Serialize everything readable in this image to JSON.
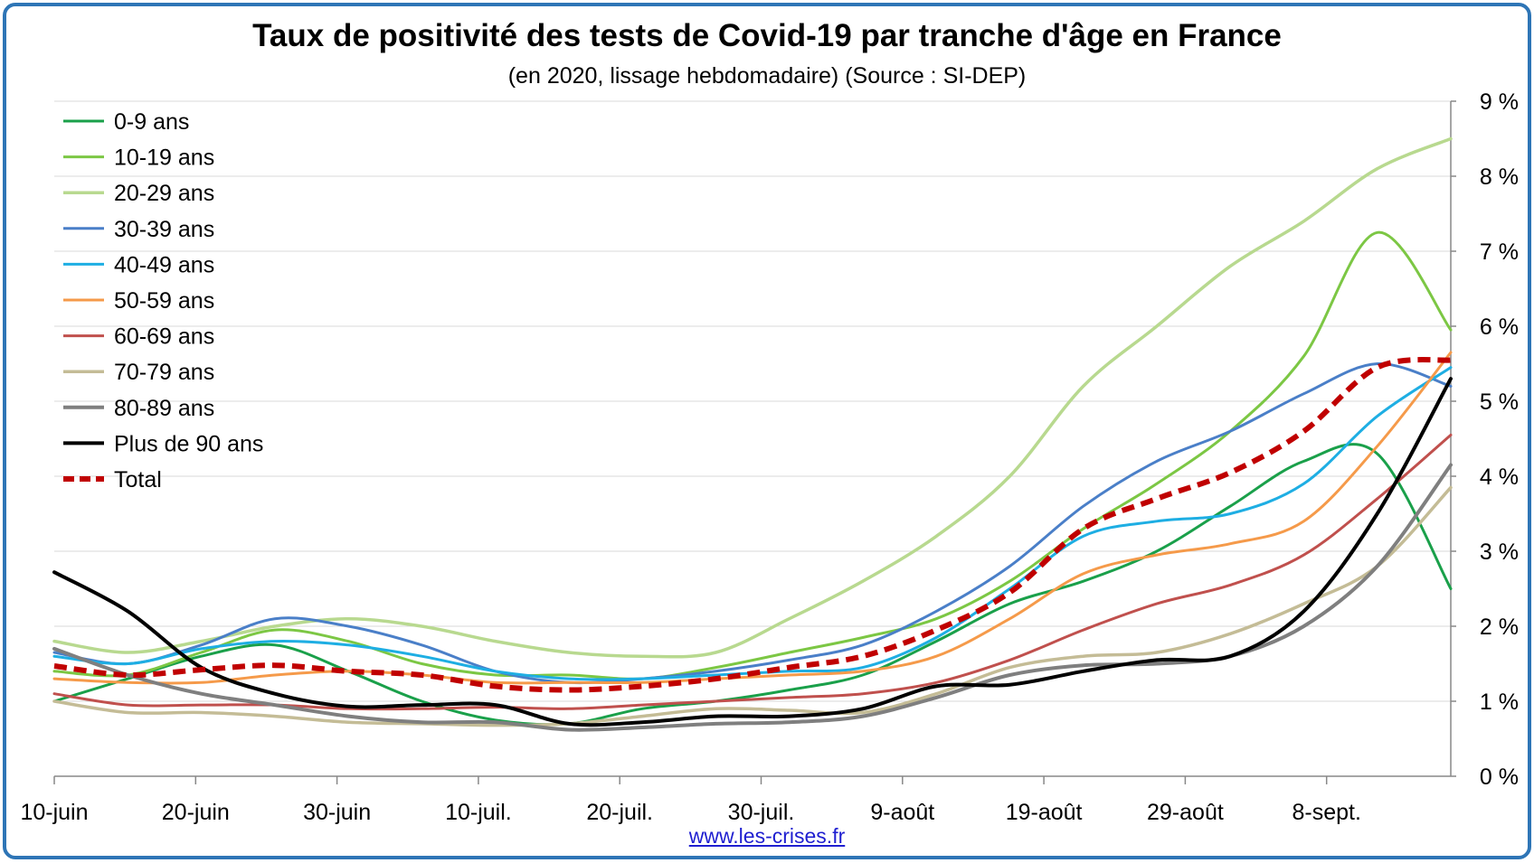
{
  "title": "Taux de positivité des tests de Covid-19 par tranche d'âge en France",
  "subtitle": "(en 2020, lissage hebdomadaire) (Source : SI-DEP)",
  "source_link": "www.les-crises.fr",
  "chart_data": {
    "type": "line",
    "x": [
      "10-juin",
      "15-juin",
      "20-juin",
      "25-juin",
      "30-juin",
      "5-juil.",
      "10-juil.",
      "15-juil.",
      "20-juil.",
      "25-juil.",
      "30-juil.",
      "4-août",
      "9-août",
      "14-août",
      "19-août",
      "24-août",
      "29-août",
      "3-sept.",
      "8-sept.",
      "13-sept."
    ],
    "xticks": [
      "10-juin",
      "20-juin",
      "30-juin",
      "10-juil.",
      "20-juil.",
      "30-juil.",
      "9-août",
      "19-août",
      "29-août",
      "8-sept."
    ],
    "yticks": [
      "0 %",
      "1 %",
      "2 %",
      "3 %",
      "4 %",
      "5 %",
      "6 %",
      "7 %",
      "8 %",
      "9 %"
    ],
    "ylim": [
      0,
      9
    ],
    "grid": true,
    "legend_position": "top-left",
    "series": [
      {
        "name": "0-9 ans",
        "color": "#1aa04a",
        "width": 3,
        "dash": "",
        "values": [
          1.0,
          1.3,
          1.6,
          1.75,
          1.4,
          1.0,
          0.75,
          0.7,
          0.9,
          1.0,
          1.15,
          1.35,
          1.8,
          2.3,
          2.6,
          3.0,
          3.6,
          4.2,
          4.3,
          2.5
        ]
      },
      {
        "name": "10-19 ans",
        "color": "#7cc744",
        "width": 3,
        "dash": "",
        "values": [
          1.4,
          1.35,
          1.65,
          1.95,
          1.8,
          1.5,
          1.35,
          1.35,
          1.3,
          1.45,
          1.65,
          1.85,
          2.1,
          2.6,
          3.3,
          3.9,
          4.6,
          5.6,
          7.25,
          5.95
        ]
      },
      {
        "name": "20-29 ans",
        "color": "#b8d98f",
        "width": 3.5,
        "dash": "",
        "values": [
          1.8,
          1.65,
          1.8,
          2.0,
          2.1,
          2.0,
          1.8,
          1.65,
          1.6,
          1.65,
          2.1,
          2.6,
          3.2,
          4.0,
          5.2,
          6.0,
          6.8,
          7.4,
          8.1,
          8.5
        ]
      },
      {
        "name": "30-39 ans",
        "color": "#4a7fc8",
        "width": 3,
        "dash": "",
        "values": [
          1.65,
          1.5,
          1.75,
          2.1,
          2.0,
          1.75,
          1.4,
          1.25,
          1.3,
          1.4,
          1.55,
          1.75,
          2.2,
          2.8,
          3.6,
          4.2,
          4.6,
          5.1,
          5.5,
          5.2
        ]
      },
      {
        "name": "40-49 ans",
        "color": "#1eaee3",
        "width": 3,
        "dash": "",
        "values": [
          1.6,
          1.5,
          1.7,
          1.8,
          1.75,
          1.6,
          1.4,
          1.3,
          1.3,
          1.35,
          1.4,
          1.45,
          1.85,
          2.5,
          3.2,
          3.4,
          3.5,
          3.9,
          4.8,
          5.45
        ]
      },
      {
        "name": "50-59 ans",
        "color": "#f59a4a",
        "width": 3,
        "dash": "",
        "values": [
          1.3,
          1.25,
          1.25,
          1.35,
          1.4,
          1.35,
          1.25,
          1.25,
          1.25,
          1.3,
          1.35,
          1.4,
          1.6,
          2.1,
          2.7,
          2.95,
          3.1,
          3.4,
          4.4,
          5.65
        ]
      },
      {
        "name": "60-69 ans",
        "color": "#c0504d",
        "width": 3,
        "dash": "",
        "values": [
          1.1,
          0.95,
          0.95,
          0.95,
          0.9,
          0.9,
          0.92,
          0.9,
          0.95,
          1.0,
          1.05,
          1.1,
          1.25,
          1.55,
          1.95,
          2.3,
          2.55,
          2.95,
          3.7,
          4.55
        ]
      },
      {
        "name": "70-79 ans",
        "color": "#c4bc96",
        "width": 3.5,
        "dash": "",
        "values": [
          1.0,
          0.85,
          0.85,
          0.8,
          0.72,
          0.7,
          0.68,
          0.7,
          0.8,
          0.9,
          0.88,
          0.85,
          1.1,
          1.45,
          1.6,
          1.65,
          1.9,
          2.3,
          2.8,
          3.85
        ]
      },
      {
        "name": "80-89 ans",
        "color": "#7f7f7f",
        "width": 4,
        "dash": "",
        "values": [
          1.7,
          1.35,
          1.1,
          0.95,
          0.8,
          0.72,
          0.72,
          0.62,
          0.65,
          0.7,
          0.72,
          0.8,
          1.05,
          1.35,
          1.48,
          1.5,
          1.6,
          2.0,
          2.8,
          4.15
        ]
      },
      {
        "name": "Plus de 90 ans",
        "color": "#000000",
        "width": 4,
        "dash": "",
        "values": [
          2.72,
          2.2,
          1.45,
          1.1,
          0.93,
          0.95,
          0.95,
          0.7,
          0.72,
          0.8,
          0.8,
          0.9,
          1.2,
          1.22,
          1.4,
          1.55,
          1.6,
          2.2,
          3.5,
          5.3
        ]
      },
      {
        "name": "Total",
        "color": "#c00000",
        "width": 6,
        "dash": "14 8",
        "values": [
          1.47,
          1.35,
          1.42,
          1.48,
          1.4,
          1.35,
          1.2,
          1.15,
          1.2,
          1.3,
          1.45,
          1.6,
          1.95,
          2.45,
          3.3,
          3.7,
          4.05,
          4.6,
          5.45,
          5.55
        ]
      }
    ]
  }
}
